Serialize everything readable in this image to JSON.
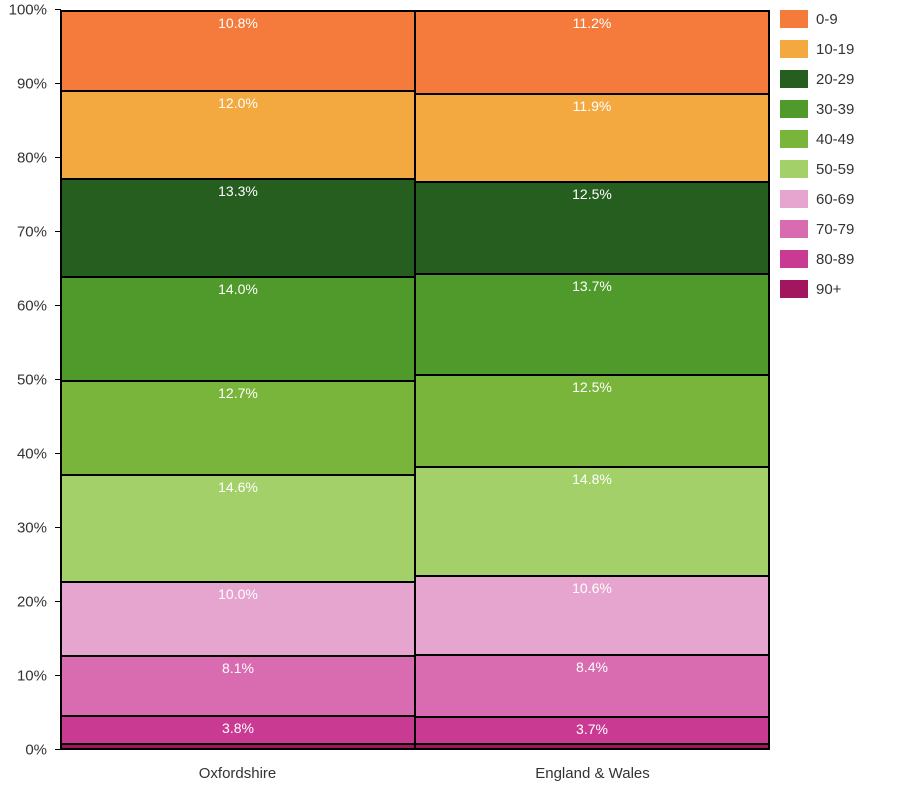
{
  "chart": {
    "type": "stacked-bar-percent",
    "background_color": "#ffffff",
    "border_color": "#000000",
    "label_color": "#ffffff",
    "axis_label_fontsize": 15,
    "segment_label_fontsize": 14,
    "ylim": [
      0,
      100
    ],
    "ytick_step": 10,
    "yticks": [
      "0%",
      "10%",
      "20%",
      "30%",
      "40%",
      "50%",
      "60%",
      "70%",
      "80%",
      "90%",
      "100%"
    ],
    "categories": [
      "Oxfordshire",
      "England & Wales"
    ],
    "series": [
      {
        "name": "0-9",
        "color": "#f47b3c"
      },
      {
        "name": "10-19",
        "color": "#f4a940"
      },
      {
        "name": "20-29",
        "color": "#265e1f"
      },
      {
        "name": "30-39",
        "color": "#4f9a2a"
      },
      {
        "name": "40-49",
        "color": "#7ab53b"
      },
      {
        "name": "50-59",
        "color": "#a4d06a"
      },
      {
        "name": "60-69",
        "color": "#e6a5ce"
      },
      {
        "name": "70-79",
        "color": "#d96bb0"
      },
      {
        "name": "80-89",
        "color": "#c93a93"
      },
      {
        "name": "90+",
        "color": "#a1165f"
      }
    ],
    "data": {
      "Oxfordshire": [
        10.8,
        12.0,
        13.3,
        14.0,
        12.7,
        14.6,
        10.0,
        8.1,
        3.8,
        0.7
      ],
      "England & Wales": [
        11.2,
        11.9,
        12.5,
        13.7,
        12.5,
        14.8,
        10.6,
        8.4,
        3.7,
        0.7
      ]
    },
    "labels": {
      "Oxfordshire": [
        "10.8%",
        "12.0%",
        "13.3%",
        "14.0%",
        "12.7%",
        "14.6%",
        "10.0%",
        "8.1%",
        "3.8%",
        ""
      ],
      "England & Wales": [
        "11.2%",
        "11.9%",
        "12.5%",
        "13.7%",
        "12.5%",
        "14.8%",
        "10.6%",
        "8.4%",
        "3.7%",
        ""
      ]
    }
  }
}
